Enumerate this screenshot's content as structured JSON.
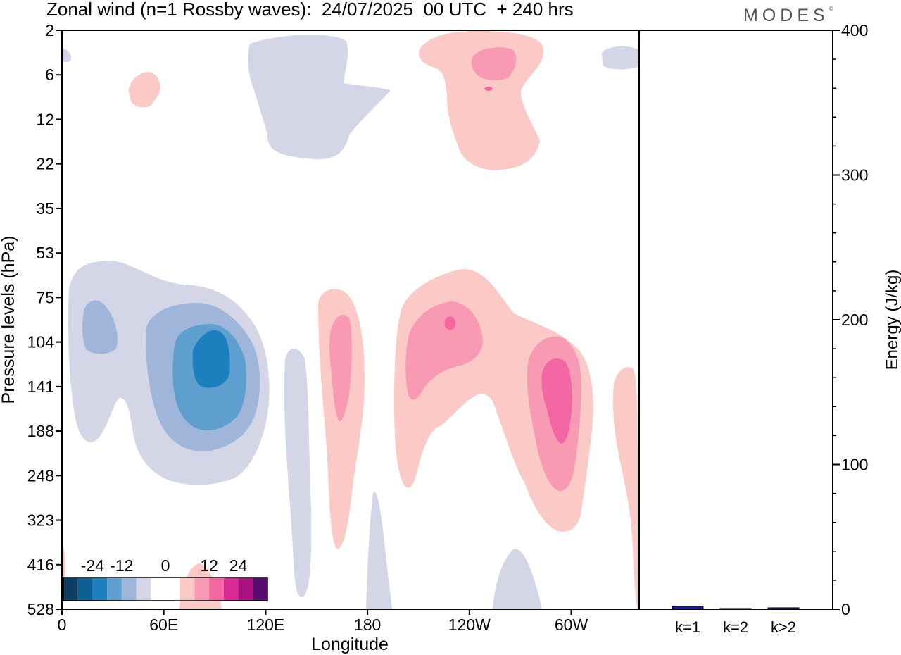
{
  "header": {
    "title": "Zonal wind (n=1 Rossby waves):  24/07/2025  00 UTC  + 240 hrs",
    "brand": "MODES",
    "brand_mark": "©"
  },
  "chart_data": [
    {
      "type": "heatmap",
      "title": "Zonal wind (n=1 Rossby waves):  24/07/2025  00 UTC  + 240 hrs",
      "xlabel": "Longitude",
      "ylabel": "Pressure levels (hPa)",
      "x_ticks": [
        "0",
        "60E",
        "120E",
        "180",
        "120W",
        "60W"
      ],
      "x_tick_degrees": [
        0,
        60,
        120,
        180,
        240,
        300
      ],
      "xlim": [
        0,
        340
      ],
      "y_ticks": [
        "2",
        "6",
        "12",
        "22",
        "35",
        "53",
        "75",
        "104",
        "141",
        "188",
        "248",
        "323",
        "416",
        "528"
      ],
      "colorbar": {
        "labels": [
          "-24",
          "-12",
          "0",
          "12",
          "24"
        ],
        "colors": [
          "#0b3b5e",
          "#0e5f95",
          "#1e7fbf",
          "#5e9fd0",
          "#9fb6da",
          "#d4d6e8",
          "#ffffff",
          "#ffffff",
          "#fbcac6",
          "#f89ab4",
          "#f266a4",
          "#d82a94",
          "#a8127e",
          "#560a6e"
        ]
      },
      "features": [
        {
          "name": "easterly-core-60e-120e",
          "lon": 87,
          "level": 123,
          "min": -20
        },
        {
          "name": "easterly-blob-20e",
          "lon": 22,
          "level": 100,
          "min": -10
        },
        {
          "name": "easterly-upper-150e-200e",
          "lon": 165,
          "level": 8,
          "min": -6
        },
        {
          "name": "westerly-core-60w",
          "lon": 290,
          "level": 150,
          "max": 15
        },
        {
          "name": "westerly-core-120w",
          "lon": 240,
          "level": 104,
          "max": 16
        },
        {
          "name": "westerly-core-180",
          "lon": 172,
          "level": 125,
          "max": 10
        },
        {
          "name": "westerly-upper-120w",
          "lon": 253,
          "level": 6,
          "max": 10
        }
      ]
    },
    {
      "type": "bar",
      "categories": [
        "k=1",
        "k=2",
        "k>2"
      ],
      "values": [
        2,
        0.5,
        1
      ],
      "ylabel": "Energy (J/kg)",
      "ylim": [
        0,
        400
      ],
      "y_ticks": [
        "0",
        "100",
        "200",
        "300",
        "400"
      ],
      "bar_color": "#1a1a9c"
    }
  ]
}
